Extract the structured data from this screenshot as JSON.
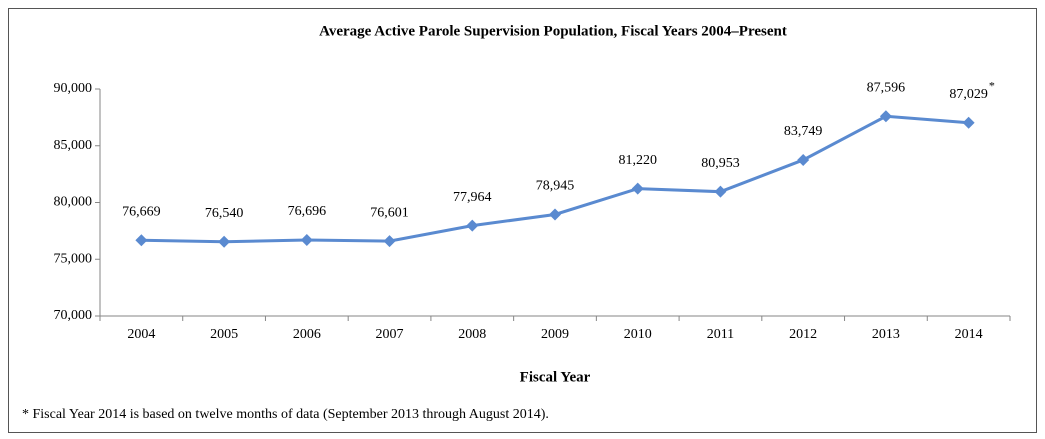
{
  "chart_data": {
    "type": "line",
    "title": "Average Active Parole Supervision Population, Fiscal Years 2004–Present",
    "x_label": "Fiscal Year",
    "footnote": "* Fiscal Year 2014 is based on twelve months of data (September 2013 through August 2014).",
    "categories": [
      "2004",
      "2005",
      "2006",
      "2007",
      "2008",
      "2009",
      "2010",
      "2011",
      "2012",
      "2013",
      "2014"
    ],
    "series": [
      {
        "name": "Average Active Parole Supervision Population",
        "color": "#5a8ad0",
        "values": [
          76669,
          76540,
          76696,
          76601,
          77964,
          78945,
          81220,
          80953,
          83749,
          87596,
          87029
        ],
        "value_labels": [
          "76,669",
          "76,540",
          "76,696",
          "76,601",
          "77,964",
          "78,945",
          "81,220",
          "80,953",
          "83,749",
          "87,596",
          "87,029"
        ]
      }
    ],
    "last_label_note": "*",
    "ylim": [
      70000,
      90000
    ],
    "yticks": [
      {
        "value": 70000,
        "label": "70,000"
      },
      {
        "value": 75000,
        "label": "75,000"
      },
      {
        "value": 80000,
        "label": "80,000"
      },
      {
        "value": 85000,
        "label": "85,000"
      },
      {
        "value": 90000,
        "label": "90,000"
      }
    ],
    "grid": false
  }
}
